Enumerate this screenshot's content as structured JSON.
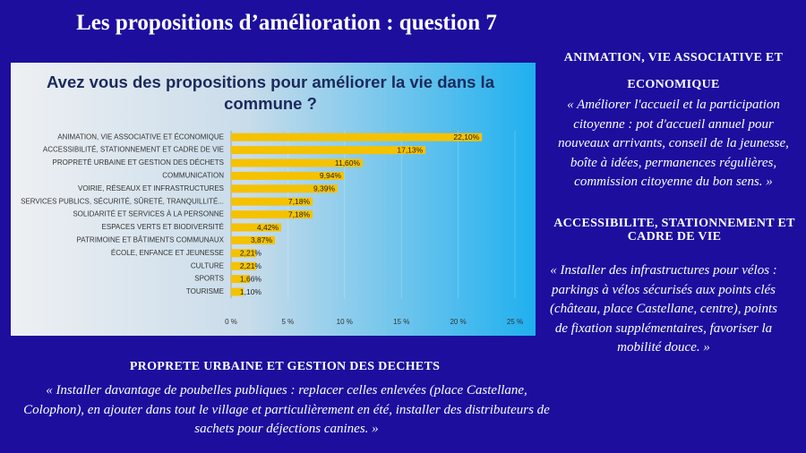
{
  "header": {
    "title": "Les propositions d’amélioration : question 7"
  },
  "chart_data": {
    "type": "barh",
    "title": "Avez vous des propositions pour améliorer la vie dans la commune ?",
    "categories": [
      "ANIMATION, VIE ASSOCIATIVE ET ÉCONOMIQUE",
      "ACCESSIBILITÉ, STATIONNEMENT ET CADRE DE VIE",
      "PROPRETÉ URBAINE ET GESTION DES DÉCHETS",
      "COMMUNICATION",
      "VOIRIE, RÉSEAUX ET INFRASTRUCTURES",
      "SERVICES PUBLICS, SÉCURITÉ, SÛRETÉ, TRANQUILLITÉ...",
      "SOLIDARITÉ ET SERVICES À LA PERSONNE",
      "ESPACES VERTS ET BIODIVERSITÉ",
      "PATRIMOINE ET BÂTIMENTS COMMUNAUX",
      "ÉCOLE, ENFANCE ET JEUNESSE",
      "CULTURE",
      "SPORTS",
      "TOURISME"
    ],
    "values": [
      22.1,
      17.13,
      11.6,
      9.94,
      9.39,
      7.18,
      7.18,
      4.42,
      3.87,
      2.21,
      2.21,
      1.66,
      1.1
    ],
    "value_labels": [
      "22,10%",
      "17,13%",
      "11,60%",
      "9,94%",
      "9,39%",
      "7,18%",
      "7,18%",
      "4,42%",
      "3,87%",
      "2,21%",
      "2,21%",
      "1,66%",
      "1,10%"
    ],
    "color": "#f5c200",
    "xlim": [
      0,
      25
    ],
    "xticks": [
      {
        "value": 0,
        "label": "0 %"
      },
      {
        "value": 5,
        "label": "5 %"
      },
      {
        "value": 10,
        "label": "10 %"
      },
      {
        "value": 15,
        "label": "15 %"
      },
      {
        "value": 20,
        "label": "20 %"
      },
      {
        "value": 25,
        "label": "25 %"
      }
    ],
    "grid": true
  },
  "sections": [
    {
      "heading": "ANIMATION, VIE ASSOCIATIVE ET ECONOMIQUE",
      "quote": "« Améliorer l'accueil et la participation citoyenne : pot d'accueil annuel pour nouveaux arrivants, conseil de la jeunesse, boîte à idées, permanences régulières, commission citoyenne du bon sens. »"
    },
    {
      "heading": "ACCESSIBILITE, STATIONNEMENT ET CADRE DE VIE",
      "quote": "« Installer des infrastructures pour vélos : parkings à vélos sécurisés aux points clés (château, place Castellane, centre), points de fixation supplémentaires, favoriser la mobilité douce. »"
    },
    {
      "heading": "PROPRETE URBAINE ET GESTION DES DECHETS",
      "quote": "« Installer davantage de poubelles publiques : replacer celles enlevées (place Castellane, Colophon), en ajouter dans tout le village et particulièrement en été, installer des distributeurs de sachets pour déjections canines. »"
    }
  ]
}
